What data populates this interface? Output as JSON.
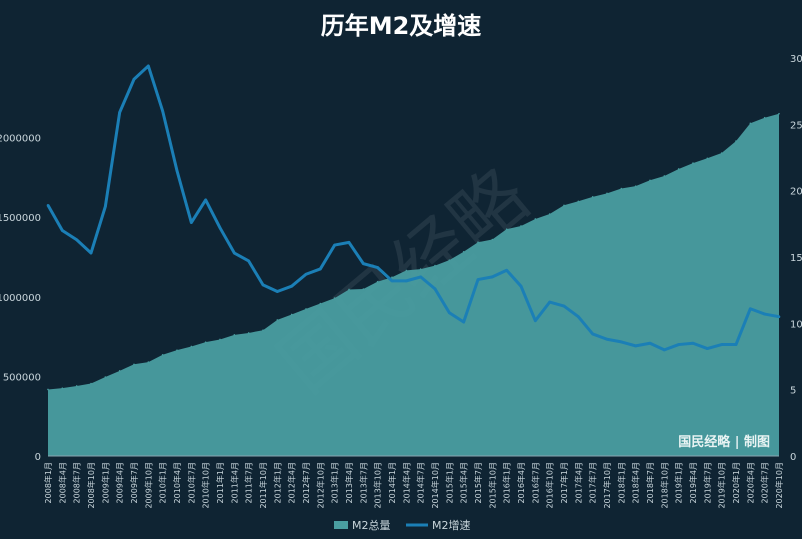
{
  "chart_data": {
    "type": "area",
    "title": "历年M2及增速",
    "x": [
      "2008年1月",
      "2008年4月",
      "2008年7月",
      "2008年10月",
      "2009年1月",
      "2009年4月",
      "2009年7月",
      "2009年10月",
      "2010年1月",
      "2010年4月",
      "2010年7月",
      "2010年10月",
      "2011年1月",
      "2011年4月",
      "2011年7月",
      "2011年10月",
      "2012年1月",
      "2012年4月",
      "2012年7月",
      "2012年10月",
      "2013年1月",
      "2013年4月",
      "2013年7月",
      "2013年10月",
      "2014年1月",
      "2014年4月",
      "2014年7月",
      "2014年10月",
      "2015年1月",
      "2015年4月",
      "2015年7月",
      "2015年10月",
      "2016年1月",
      "2016年4月",
      "2016年7月",
      "2016年10月",
      "2017年1月",
      "2017年4月",
      "2017年7月",
      "2017年10月",
      "2018年1月",
      "2018年4月",
      "2018年7月",
      "2018年10月",
      "2019年1月",
      "2019年4月",
      "2019年7月",
      "2019年10月",
      "2020年1月",
      "2020年4月",
      "2020年7月",
      "2020年10月"
    ],
    "series": [
      {
        "name": "M2总量",
        "type": "area",
        "axis": "left",
        "color": "#4a9ea1",
        "values": [
          417846,
          426000,
          440000,
          455000,
          496000,
          535000,
          576000,
          590000,
          636000,
          665000,
          688000,
          715000,
          732000,
          761000,
          773000,
          790000,
          855000,
          889000,
          924000,
          958000,
          992000,
          1046000,
          1049000,
          1095000,
          1123000,
          1166000,
          1174000,
          1196000,
          1230000,
          1283000,
          1343000,
          1360000,
          1425000,
          1445000,
          1489000,
          1520000,
          1575000,
          1600000,
          1628000,
          1650000,
          1680000,
          1695000,
          1732000,
          1759000,
          1803000,
          1840000,
          1870000,
          1903000,
          1978000,
          2090000,
          2125000,
          2150000
        ]
      },
      {
        "name": "M2增速",
        "type": "line",
        "axis": "right",
        "color": "#1b7fb6",
        "values": [
          18.9,
          17.0,
          16.3,
          15.3,
          18.8,
          25.9,
          28.4,
          29.4,
          26.0,
          21.5,
          17.6,
          19.3,
          17.2,
          15.3,
          14.7,
          12.9,
          12.4,
          12.8,
          13.7,
          14.1,
          15.9,
          16.1,
          14.5,
          14.2,
          13.2,
          13.2,
          13.5,
          12.6,
          10.8,
          10.1,
          13.3,
          13.5,
          14.0,
          12.8,
          10.2,
          11.6,
          11.3,
          10.5,
          9.2,
          8.8,
          8.6,
          8.3,
          8.5,
          8.0,
          8.4,
          8.5,
          8.1,
          8.4,
          8.4,
          11.1,
          10.7,
          10.5
        ]
      }
    ],
    "left_axis": {
      "ylim": [
        0,
        2500000
      ],
      "ticks": [
        "0",
        "500000",
        "1000000",
        "1500000",
        "2000000"
      ]
    },
    "right_axis": {
      "ylim": [
        0,
        30
      ],
      "ticks": [
        "0",
        "5",
        "10",
        "15",
        "20",
        "25",
        "30"
      ]
    },
    "legend": [
      "M2总量",
      "M2增速"
    ],
    "legend_position": "bottom",
    "watermark": "国民经略",
    "credit": "国民经略 | 制图",
    "grid": false
  }
}
